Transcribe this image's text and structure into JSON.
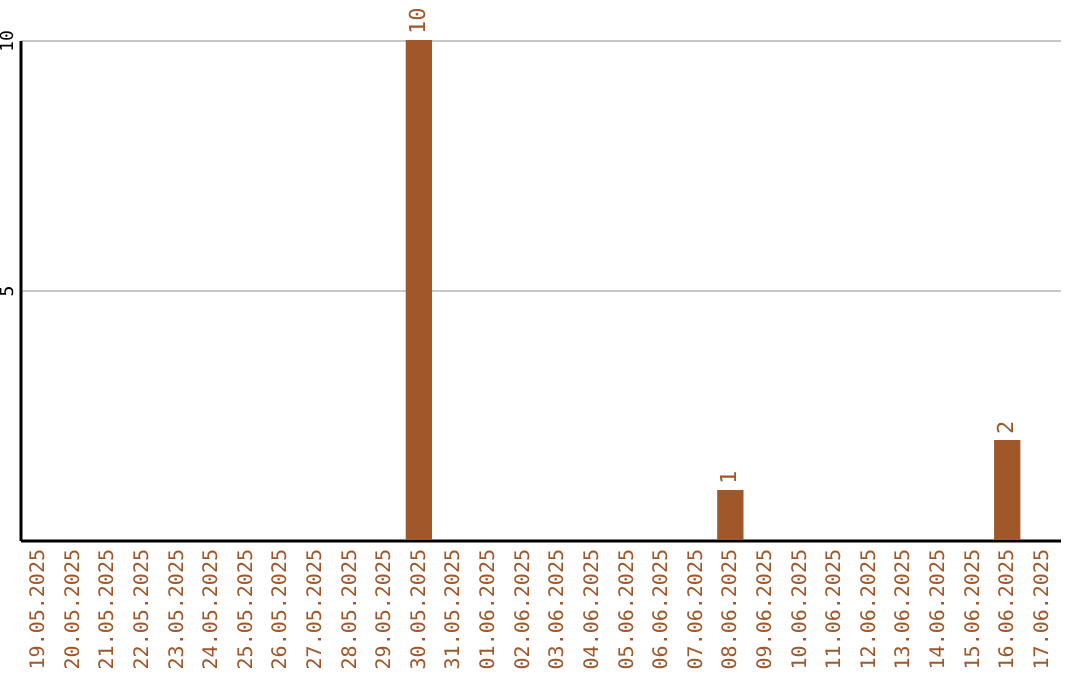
{
  "chart_data": {
    "type": "bar",
    "categories": [
      "19.05.2025",
      "20.05.2025",
      "21.05.2025",
      "22.05.2025",
      "23.05.2025",
      "24.05.2025",
      "25.05.2025",
      "26.05.2025",
      "27.05.2025",
      "28.05.2025",
      "29.05.2025",
      "30.05.2025",
      "31.05.2025",
      "01.06.2025",
      "02.06.2025",
      "03.06.2025",
      "04.06.2025",
      "05.06.2025",
      "06.06.2025",
      "07.06.2025",
      "08.06.2025",
      "09.06.2025",
      "10.06.2025",
      "11.06.2025",
      "12.06.2025",
      "13.06.2025",
      "14.06.2025",
      "15.06.2025",
      "16.06.2025",
      "17.06.2025"
    ],
    "values": [
      0,
      0,
      0,
      0,
      0,
      0,
      0,
      0,
      0,
      0,
      0,
      10,
      0,
      0,
      0,
      0,
      0,
      0,
      0,
      0,
      1,
      0,
      0,
      0,
      0,
      0,
      0,
      0,
      2,
      0
    ],
    "value_labels": [
      null,
      null,
      null,
      null,
      null,
      null,
      null,
      null,
      null,
      null,
      null,
      "10",
      null,
      null,
      null,
      null,
      null,
      null,
      null,
      null,
      "1",
      null,
      null,
      null,
      null,
      null,
      null,
      null,
      "2",
      null
    ],
    "color": "#a0572a",
    "ylim": [
      0,
      10
    ],
    "yticks": [
      5,
      10
    ],
    "grid": "y"
  }
}
